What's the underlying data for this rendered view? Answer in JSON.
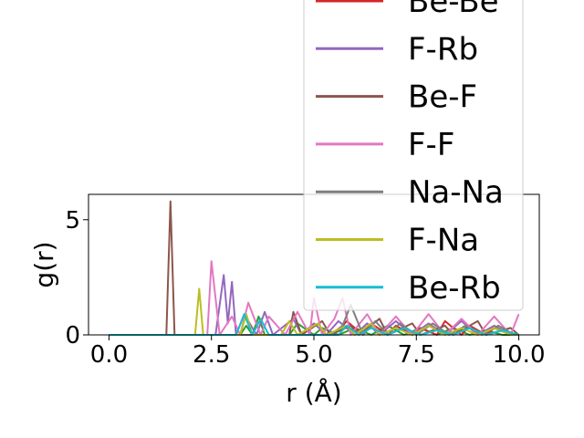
{
  "chart_data": {
    "type": "line",
    "title": "",
    "xlabel": "r (Å)",
    "ylabel": "g(r)",
    "xlim": [
      -0.5,
      10.5
    ],
    "ylim": [
      0,
      6.1
    ],
    "xticks": [
      "0.0",
      "2.5",
      "5.0",
      "7.5",
      "10.0"
    ],
    "xtick_values": [
      0,
      2.5,
      5,
      7.5,
      10
    ],
    "yticks": [
      "0",
      "5"
    ],
    "ytick_values": [
      0,
      5
    ],
    "grid": false,
    "legend_position": "upper-right",
    "series": [
      {
        "name": "",
        "color": "#2ca02c",
        "x": [
          0,
          3.2,
          3.35,
          3.5,
          3.65,
          3.8,
          4.4,
          4.6,
          5.0,
          5.2,
          5.6,
          6.0,
          6.4,
          6.8,
          7.2,
          7.6,
          8.0,
          8.4,
          8.8,
          9.2,
          9.6,
          10.0
        ],
        "y": [
          0,
          0,
          0.4,
          0,
          0.8,
          0,
          0,
          0.5,
          0,
          0.3,
          0,
          0.3,
          0,
          0.4,
          0,
          0.3,
          0,
          0.3,
          0,
          0.2,
          0,
          0
        ]
      },
      {
        "name": "Be-Be",
        "color": "#d62728",
        "x": [
          0,
          5.4,
          5.6,
          5.8,
          6.2,
          6.4,
          6.8,
          7.0,
          7.4,
          7.6,
          8.0,
          8.2,
          8.6,
          8.8,
          9.2,
          9.4,
          9.8,
          10.0
        ],
        "y": [
          0,
          0,
          0.2,
          0.6,
          0,
          0.5,
          0,
          0.4,
          0,
          0.3,
          0,
          0.6,
          0,
          0.4,
          0,
          0.3,
          0,
          0
        ]
      },
      {
        "name": "F-Rb",
        "color": "#9467bd",
        "x": [
          0,
          2.6,
          2.8,
          2.9,
          3.0,
          3.1,
          3.3,
          3.6,
          3.8,
          4.0,
          4.5,
          4.7,
          5.0,
          5.3,
          5.6,
          6.0,
          6.3,
          6.6,
          7.0,
          7.4,
          7.8,
          8.2,
          8.6,
          9.0,
          9.4,
          9.8,
          10.0
        ],
        "y": [
          0,
          0,
          2.6,
          0.5,
          2.3,
          0,
          0.9,
          0,
          1.0,
          0,
          0.7,
          0,
          0.5,
          0,
          0.6,
          0,
          0.5,
          0,
          0.6,
          0,
          0.5,
          0,
          0.6,
          0,
          0.4,
          0,
          0
        ]
      },
      {
        "name": "Be-F",
        "color": "#8c564b",
        "x": [
          0,
          1.4,
          1.5,
          1.6,
          2.5,
          4.4,
          4.5,
          4.7,
          5.2,
          5.4,
          5.9,
          6.1,
          6.6,
          6.8,
          7.4,
          7.6,
          8.2,
          8.4,
          9.0,
          9.2,
          9.8,
          10.0
        ],
        "y": [
          0,
          0,
          5.8,
          0,
          0,
          0,
          1.0,
          0,
          0.6,
          0,
          0.4,
          0,
          0.7,
          0,
          0.5,
          0,
          0.4,
          0,
          0.6,
          0,
          0.3,
          0
        ]
      },
      {
        "name": "F-F",
        "color": "#e377c2",
        "x": [
          0,
          2.4,
          2.5,
          2.7,
          3.0,
          3.2,
          3.4,
          3.7,
          3.9,
          4.3,
          4.6,
          4.9,
          5.0,
          5.2,
          5.5,
          5.7,
          5.9,
          6.3,
          6.6,
          7.0,
          7.4,
          7.8,
          8.2,
          8.6,
          9.0,
          9.4,
          9.8,
          10.0
        ],
        "y": [
          0,
          0,
          3.2,
          0,
          0.8,
          0,
          1.4,
          0,
          0.8,
          0,
          1.0,
          0,
          1.6,
          0,
          0.7,
          1.6,
          0,
          0.9,
          0,
          0.8,
          0,
          0.9,
          0,
          0.7,
          0,
          0.8,
          0,
          0.9
        ]
      },
      {
        "name": "Na-Na",
        "color": "#7f7f7f",
        "x": [
          0,
          5.4,
          5.7,
          5.9,
          6.2,
          6.5,
          6.8,
          7.1,
          7.5,
          7.9,
          8.3,
          8.7,
          9.1,
          9.5,
          9.9,
          10.0
        ],
        "y": [
          0,
          0,
          0.4,
          1.3,
          0,
          0.6,
          0,
          0.5,
          0,
          0.5,
          0,
          0.4,
          0,
          0.4,
          0,
          0
        ]
      },
      {
        "name": "F-Na",
        "color": "#bcbd22",
        "x": [
          0,
          2.1,
          2.2,
          2.3,
          3.2,
          3.35,
          3.5,
          4.2,
          4.4,
          4.6,
          5.1,
          5.3,
          5.8,
          6.0,
          6.4,
          6.6,
          7.0,
          7.4,
          7.8,
          8.2,
          8.6,
          9.0,
          9.4,
          9.8,
          10.0
        ],
        "y": [
          0,
          0,
          2.0,
          0,
          0,
          0.9,
          0,
          0,
          0.6,
          0,
          0.5,
          0,
          0.4,
          0,
          0.5,
          0,
          0.3,
          0,
          0.4,
          0,
          0.3,
          0,
          0.3,
          0,
          0
        ]
      },
      {
        "name": "Be-Rb",
        "color": "#17becf",
        "x": [
          0,
          3.1,
          3.3,
          3.5,
          3.7,
          3.9,
          5.6,
          5.8,
          6.1,
          6.4,
          6.8,
          7.2,
          7.6,
          8.0,
          8.4,
          8.8,
          9.2,
          9.6,
          10.0
        ],
        "y": [
          0,
          0,
          0.9,
          0,
          0.7,
          0,
          0,
          0.4,
          0,
          0.3,
          0,
          0.3,
          0,
          0.2,
          0,
          0.3,
          0,
          0.2,
          0
        ]
      }
    ]
  }
}
